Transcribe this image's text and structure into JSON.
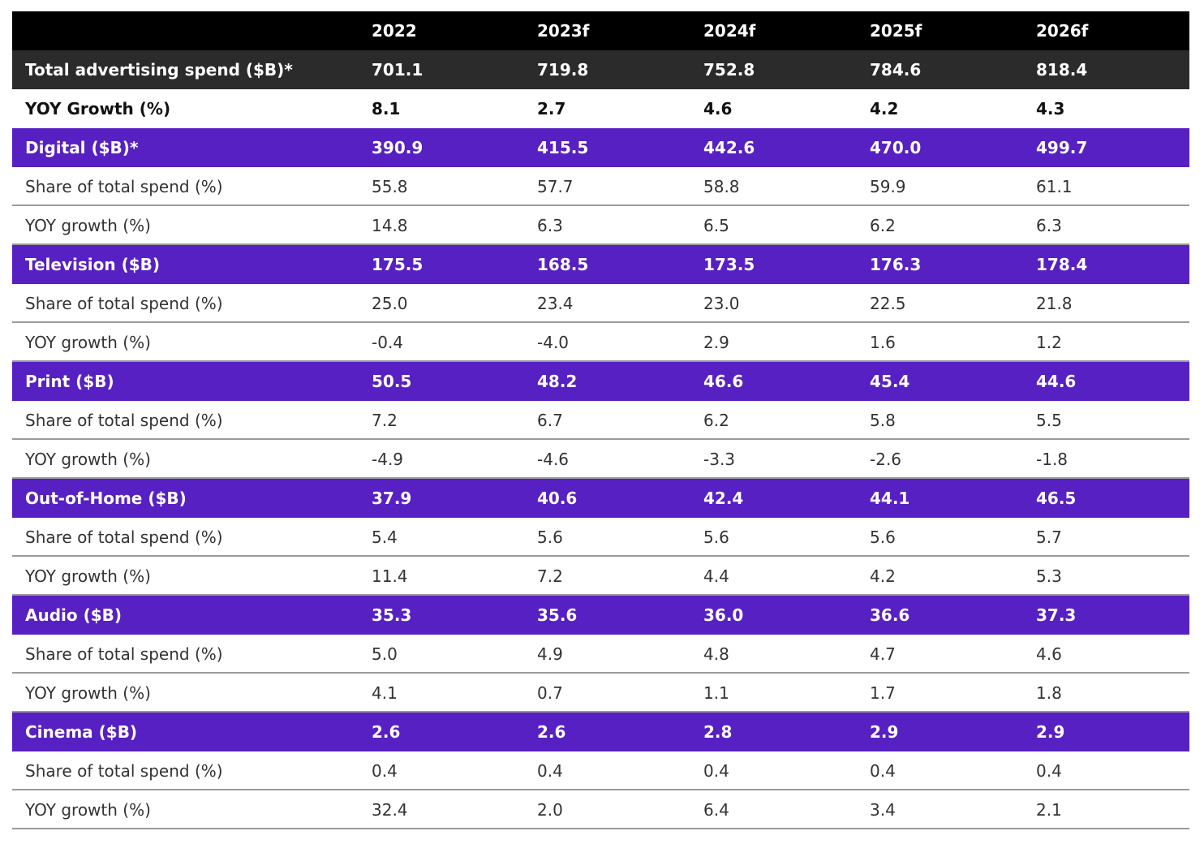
{
  "table": {
    "columns": [
      "2022",
      "2023f",
      "2024f",
      "2025f",
      "2026f"
    ],
    "total": {
      "label": "Total advertising spend ($B)*",
      "values": [
        "701.1",
        "719.8",
        "752.8",
        "784.6",
        "818.4"
      ]
    },
    "growth": {
      "label": "YOY Growth (%)",
      "values": [
        "8.1",
        "2.7",
        "4.6",
        "4.2",
        "4.3"
      ]
    },
    "groups": [
      {
        "label": "Digital ($B)*",
        "values": [
          "390.9",
          "415.5",
          "442.6",
          "470.0",
          "499.7"
        ],
        "rows": [
          {
            "label": "Share of total spend (%)",
            "values": [
              "55.8",
              "57.7",
              "58.8",
              "59.9",
              "61.1"
            ]
          },
          {
            "label": "YOY growth (%)",
            "values": [
              "14.8",
              "6.3",
              "6.5",
              "6.2",
              "6.3"
            ]
          }
        ]
      },
      {
        "label": "Television ($B)",
        "values": [
          "175.5",
          "168.5",
          "173.5",
          "176.3",
          "178.4"
        ],
        "rows": [
          {
            "label": "Share of total spend (%)",
            "values": [
              "25.0",
              "23.4",
              "23.0",
              "22.5",
              "21.8"
            ]
          },
          {
            "label": "YOY growth (%)",
            "values": [
              "-0.4",
              "-4.0",
              "2.9",
              "1.6",
              "1.2"
            ]
          }
        ]
      },
      {
        "label": "Print ($B)",
        "values": [
          "50.5",
          "48.2",
          "46.6",
          "45.4",
          "44.6"
        ],
        "rows": [
          {
            "label": "Share of total spend (%)",
            "values": [
              "7.2",
              "6.7",
              "6.2",
              "5.8",
              "5.5"
            ]
          },
          {
            "label": "YOY growth (%)",
            "values": [
              "-4.9",
              "-4.6",
              "-3.3",
              "-2.6",
              "-1.8"
            ]
          }
        ]
      },
      {
        "label": "Out-of-Home ($B)",
        "values": [
          "37.9",
          "40.6",
          "42.4",
          "44.1",
          "46.5"
        ],
        "rows": [
          {
            "label": "Share of total spend (%)",
            "values": [
              "5.4",
              "5.6",
              "5.6",
              "5.6",
              "5.7"
            ]
          },
          {
            "label": "YOY growth (%)",
            "values": [
              "11.4",
              "7.2",
              "4.4",
              "4.2",
              "5.3"
            ]
          }
        ]
      },
      {
        "label": "Audio ($B)",
        "values": [
          "35.3",
          "35.6",
          "36.0",
          "36.6",
          "37.3"
        ],
        "rows": [
          {
            "label": "Share of total spend (%)",
            "values": [
              "5.0",
              "4.9",
              "4.8",
              "4.7",
              "4.6"
            ]
          },
          {
            "label": "YOY growth (%)",
            "values": [
              "4.1",
              "0.7",
              "1.1",
              "1.7",
              "1.8"
            ]
          }
        ]
      },
      {
        "label": "Cinema ($B)",
        "values": [
          "2.6",
          "2.6",
          "2.8",
          "2.9",
          "2.9"
        ],
        "rows": [
          {
            "label": "Share of total spend (%)",
            "values": [
              "0.4",
              "0.4",
              "0.4",
              "0.4",
              "0.4"
            ]
          },
          {
            "label": "YOY growth (%)",
            "values": [
              "32.4",
              "2.0",
              "6.4",
              "3.4",
              "2.1"
            ]
          }
        ]
      }
    ]
  }
}
